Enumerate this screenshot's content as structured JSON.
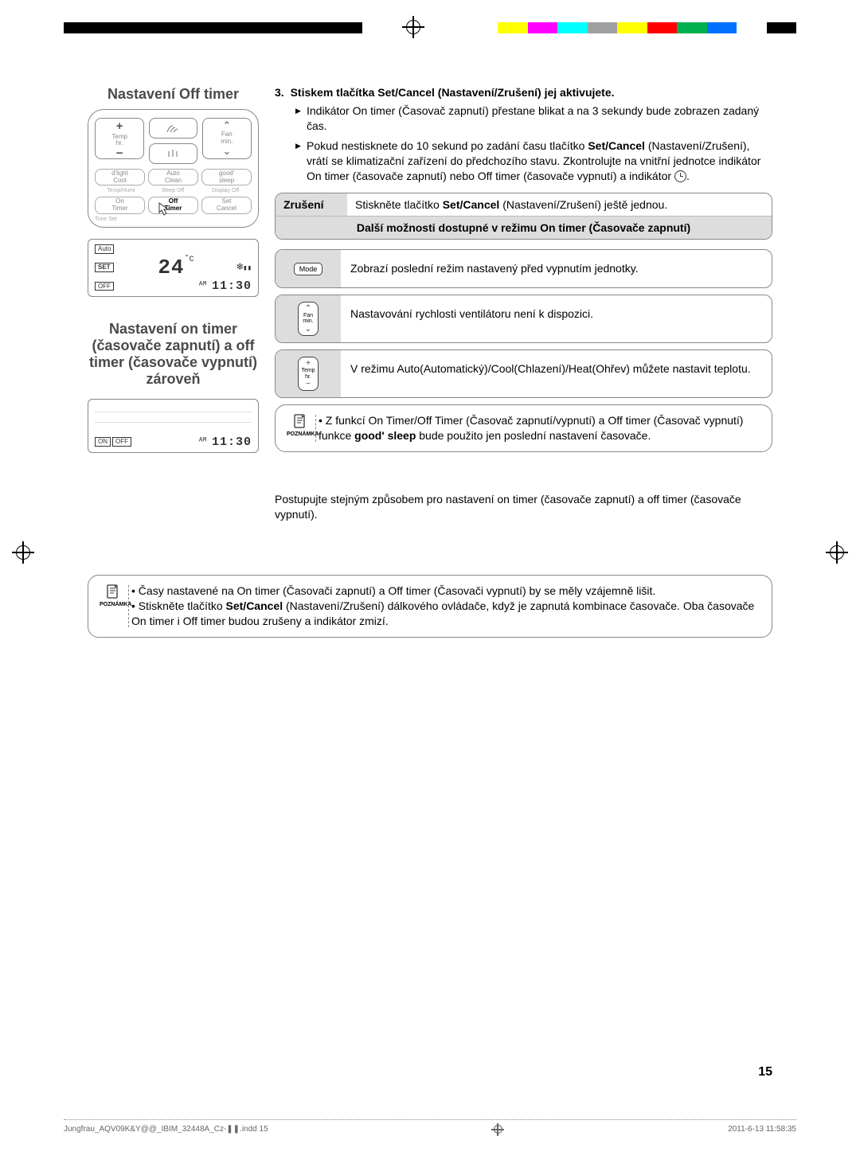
{
  "colorStrip": [
    "#ffff00",
    "#ff00ff",
    "#00ffff",
    "#a0a0a0",
    "#ffff00",
    "#ff0000",
    "#00b050",
    "#0070ff",
    "#ffffff",
    "#000000"
  ],
  "titles": {
    "offTimer": "Nastavení Off timer",
    "both": "Nastavení on timer (časovače zapnutí) a off timer (časovače vypnutí) zároveň"
  },
  "remote": {
    "tempLabel": "Temp\nhr.",
    "fanLabel": "Fan\nmin.",
    "row2": [
      "d'light\nCool",
      "Auto\nClean",
      "good'\nsleep"
    ],
    "sub2": [
      "Temp/Humi",
      "Beep Off",
      "Display Off"
    ],
    "row3": [
      "On\nTimer",
      "Off\nTimer",
      "Set\nCancel"
    ],
    "timeset": "Time Set"
  },
  "lcd1": {
    "auto": "Auto",
    "set": "SET",
    "temp": "24",
    "unit": "˚C",
    "off": "OFF",
    "ampm": "AM",
    "time": "11:30"
  },
  "lcd2": {
    "on": "ON",
    "off": "OFF",
    "ampm": "AM",
    "time": "11:30"
  },
  "step": {
    "num": "3.",
    "head": "Stiskem tlačítka Set/Cancel (Nastavení/Zrušení) jej aktivujete.",
    "b1": "Indikátor On timer (Časovač zapnutí) přestane blikat a na 3 sekundy bude zobrazen zadaný čas.",
    "b2a": "Pokud nestisknete do 10 sekund po zadání času tlačítko ",
    "b2bold": "Set/Cancel",
    "b2b": " (Nastavení/Zrušení), vrátí se klimatizační zařízení do předchozího stavu. Zkontrolujte na vnitřní jednotce indikátor On timer (časovače zapnutí) nebo Off timer (časovače vypnutí) a indikátor "
  },
  "cancel": {
    "label": "Zrušení",
    "text_a": "Stiskněte tlačítko ",
    "text_bold": "Set/Cancel",
    "text_b": " (Nastavení/Zrušení) ještě jednou.",
    "header": "Další možnosti dostupné v režimu On timer (Časovače zapnutí)"
  },
  "opts": {
    "mode": "Mode",
    "mode_text": "Zobrazí poslední režim nastavený před vypnutím jednotky.",
    "fan_top": "Fan",
    "fan_bot": "min.",
    "fan_text": "Nastavování rychlosti ventilátoru není k dispozici.",
    "temp_top": "Temp",
    "temp_bot": "hr.",
    "temp_text": "V režimu Auto(Automatický)/Cool(Chlazení)/Heat(Ohřev) můžete nastavit teplotu."
  },
  "note1": {
    "label": "POZNÁMKA",
    "text_a": "Z funkcí On Timer/Off Timer (Časovač zapnutí/vypnutí) a Off timer (Časovač vypnutí) funkce ",
    "text_bold": "good' sleep",
    "text_b": " bude použito jen poslední nastavení časovače."
  },
  "bothText": "Postupujte stejným způsobem pro nastavení on timer (časovače zapnutí) a off timer (časovače vypnutí).",
  "note2": {
    "label": "POZNÁMKA",
    "li1": "Časy nastavené na On timer (Časovači zapnutí) a Off timer (Časovači vypnutí) by se měly vzájemně lišit.",
    "li2a": "Stiskněte tlačítko ",
    "li2bold": "Set/Cancel",
    "li2b": " (Nastavení/Zrušení) dálkového ovládače, když je zapnutá kombinace časovače. Oba časovače On timer i Off timer budou zrušeny a indikátor zmizí."
  },
  "pageNum": "15",
  "footer": {
    "file": "Jungfrau_AQV09K&Y@@_IBIM_32448A_Cz-❚❚.indd   15",
    "date": "2011-6-13   11:58:35"
  }
}
